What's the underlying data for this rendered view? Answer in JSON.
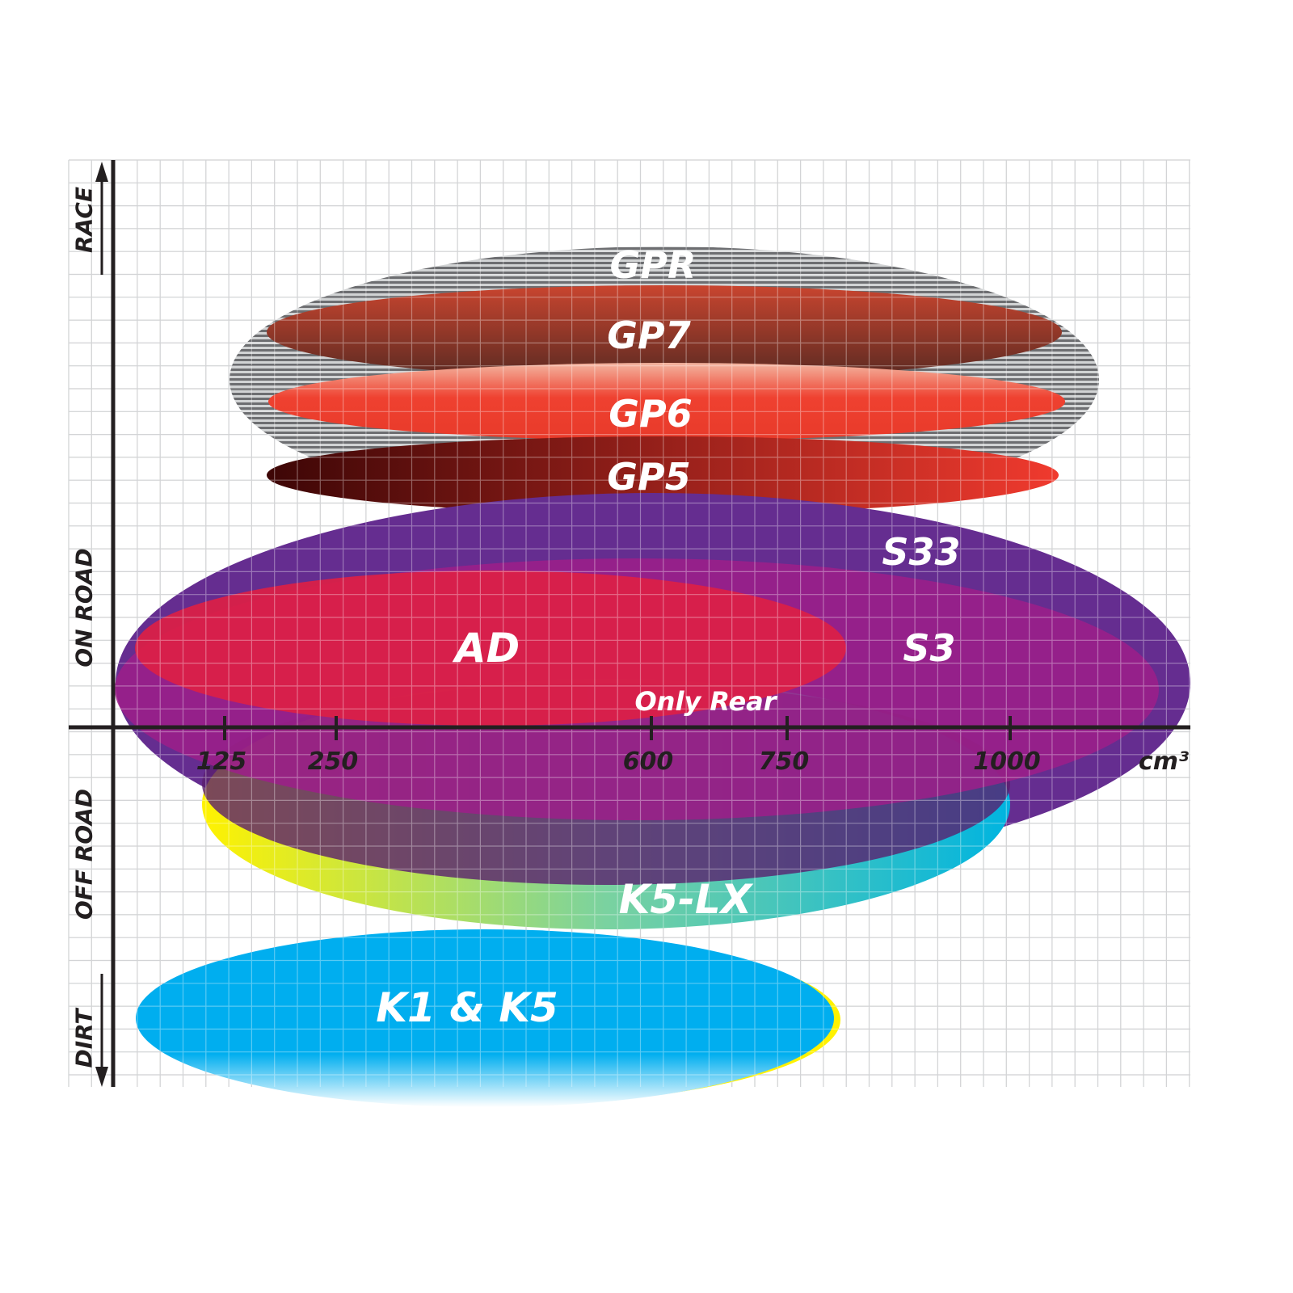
{
  "chart_data": {
    "type": "positioning-map",
    "x_axis": {
      "unit": "cm³",
      "ticks": [
        125,
        250,
        600,
        750,
        1000
      ],
      "tick_labels": [
        "125",
        "250",
        "600",
        "750",
        "1000"
      ]
    },
    "y_axis": {
      "labels": [
        "RACE",
        "ON ROAD",
        "OFF ROAD",
        "DIRT"
      ]
    },
    "grid": true,
    "series": [
      {
        "name": "GPR",
        "color": "#a7a9ac",
        "pattern": "hatched"
      },
      {
        "name": "GP7",
        "color": "#b5432e"
      },
      {
        "name": "GP6",
        "color": "#ef4130"
      },
      {
        "name": "GP5",
        "color": "#6b0f0f"
      },
      {
        "name": "S33",
        "color": "#652d90"
      },
      {
        "name": "S3",
        "color": "#9e1f8a"
      },
      {
        "name": "AD",
        "color": "#dc1f45"
      },
      {
        "name": "K5-LX",
        "color": "#00b4d8",
        "note": "Only Rear"
      },
      {
        "name": "K1 & K5",
        "color": "#00aeef"
      }
    ]
  }
}
